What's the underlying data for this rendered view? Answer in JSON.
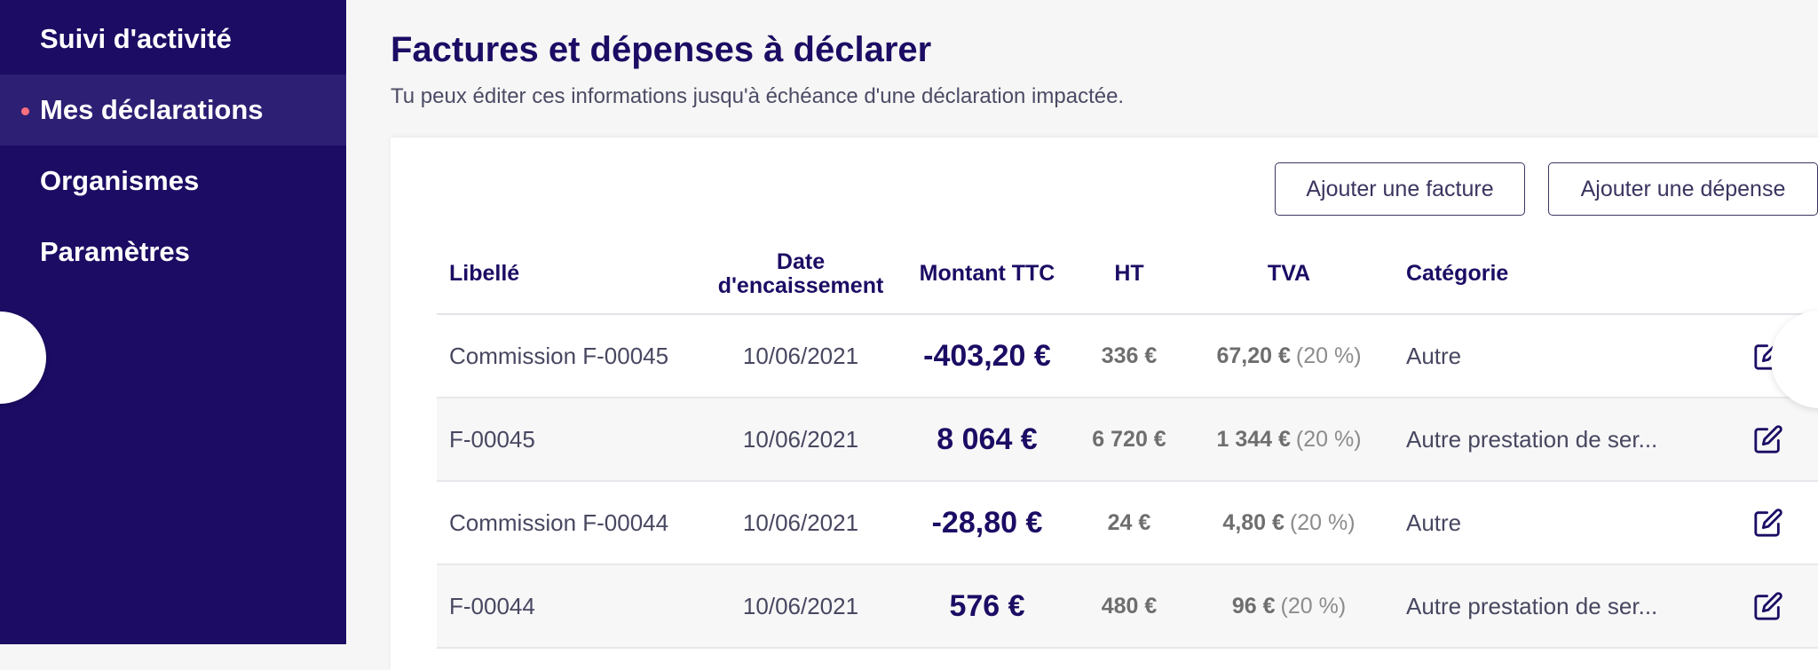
{
  "sidebar": {
    "items": [
      {
        "label": "Suivi d'activité"
      },
      {
        "label": "Mes déclarations"
      },
      {
        "label": "Organismes"
      },
      {
        "label": "Paramètres"
      }
    ],
    "collapse_icon": "‹"
  },
  "header": {
    "title": "Factures et dépenses à déclarer",
    "subtitle": "Tu peux éditer ces informations jusqu'à échéance d'une déclaration impactée."
  },
  "actions": {
    "add_invoice": "Ajouter une facture",
    "add_expense": "Ajouter une dépense"
  },
  "table": {
    "columns": {
      "libelle": "Libellé",
      "date": "Date d'encaissement",
      "ttc": "Montant TTC",
      "ht": "HT",
      "tva": "TVA",
      "categorie": "Catégorie"
    },
    "rows": [
      {
        "libelle": "Commission F-00045",
        "date": "10/06/2021",
        "ttc": "-403,20 €",
        "ht": "336 €",
        "tva": "67,20 €",
        "tva_rate": "(20 %)",
        "categorie": "Autre"
      },
      {
        "libelle": "F-00045",
        "date": "10/06/2021",
        "ttc": "8 064 €",
        "ht": "6 720 €",
        "tva": "1 344 €",
        "tva_rate": "(20 %)",
        "categorie": "Autre prestation de ser..."
      },
      {
        "libelle": "Commission F-00044",
        "date": "10/06/2021",
        "ttc": "-28,80 €",
        "ht": "24 €",
        "tva": "4,80 €",
        "tva_rate": "(20 %)",
        "categorie": "Autre"
      },
      {
        "libelle": "F-00044",
        "date": "10/06/2021",
        "ttc": "576 €",
        "ht": "480 €",
        "tva": "96 €",
        "tva_rate": "(20 %)",
        "categorie": "Autre prestation de ser..."
      }
    ]
  },
  "colors": {
    "sidebar_bg": "#1c0c64",
    "accent": "#ff6f7d",
    "title": "#1c0c64"
  }
}
